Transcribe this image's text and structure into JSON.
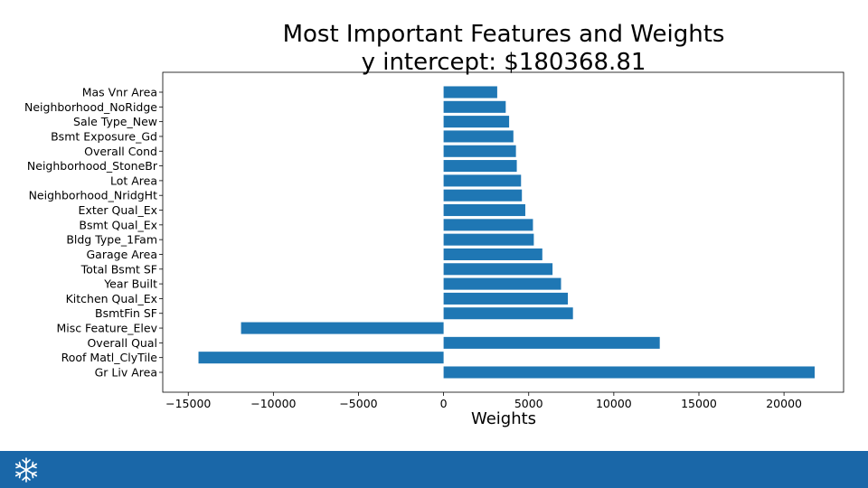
{
  "chart_data": {
    "type": "bar",
    "orientation": "horizontal",
    "title": "Most Important Features and Weights",
    "subtitle": "y intercept: $180368.81",
    "xlabel": "Weights",
    "ylabel": "",
    "xlim": [
      -16500,
      23500
    ],
    "xticks": [
      -15000,
      -10000,
      -5000,
      0,
      5000,
      10000,
      15000,
      20000
    ],
    "xtick_labels": [
      "−15000",
      "−10000",
      "−5000",
      "0",
      "5000",
      "10000",
      "15000",
      "20000"
    ],
    "bar_color": "#1f77b4",
    "grid": false,
    "categories": [
      "Gr Liv Area",
      "Roof Matl_ClyTile",
      "Overall Qual",
      "Misc Feature_Elev",
      "BsmtFin SF",
      "Kitchen Qual_Ex",
      "Year Built",
      "Total Bsmt SF",
      "Garage Area",
      "Bldg Type_1Fam",
      "Bsmt Qual_Ex",
      "Exter Qual_Ex",
      "Neighborhood_NridgHt",
      "Lot Area",
      "Neighborhood_StoneBr",
      "Overall Cond",
      "Bsmt Exposure_Gd",
      "Sale Type_New",
      "Neighborhood_NoRidge",
      "Mas Vnr Area"
    ],
    "values": [
      21800,
      -14400,
      12700,
      -11900,
      7600,
      7300,
      6900,
      6400,
      5800,
      5300,
      5250,
      4800,
      4600,
      4550,
      4300,
      4250,
      4100,
      3850,
      3650,
      3150
    ]
  },
  "footer": {
    "color": "#1a67a8",
    "logo_icon": "snowflake-icon"
  }
}
